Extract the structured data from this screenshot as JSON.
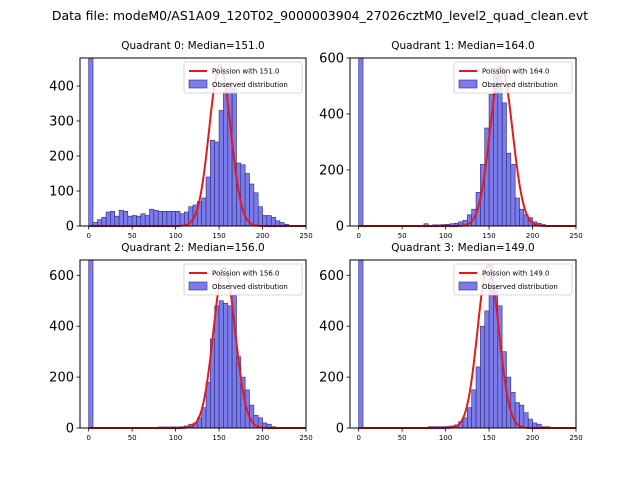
{
  "figure_title": "Data file: modeM0/AS1A09_120T02_9000003904_27026cztM0_level2_quad_clean.evt",
  "colors": {
    "bar_fill": "#7b7bea",
    "bar_edge": "#2b2b7a",
    "curve": "#e41a1c",
    "axis": "#000000"
  },
  "chart_data": [
    {
      "type": "bar",
      "title": "Quadrant 0: Median=151.0",
      "legend": [
        "Poission with 151.0",
        "Observed distribution"
      ],
      "legend_position": "top-right",
      "xlim": [
        -10,
        250
      ],
      "ylim": [
        0,
        480
      ],
      "xticks": [
        0,
        50,
        100,
        150,
        200,
        250
      ],
      "yticks": [
        0,
        100,
        200,
        300,
        400
      ],
      "bin_width": 5,
      "bins_start": [
        0,
        5,
        10,
        15,
        20,
        25,
        30,
        35,
        40,
        45,
        50,
        55,
        60,
        65,
        70,
        75,
        80,
        85,
        90,
        95,
        100,
        105,
        110,
        115,
        120,
        125,
        130,
        135,
        140,
        145,
        150,
        155,
        160,
        165,
        170,
        175,
        180,
        185,
        190,
        195,
        200,
        205,
        210,
        215,
        220,
        225,
        230,
        235,
        240
      ],
      "counts": [
        480,
        10,
        18,
        25,
        40,
        42,
        28,
        45,
        42,
        28,
        30,
        28,
        35,
        30,
        48,
        45,
        42,
        42,
        42,
        42,
        42,
        35,
        40,
        55,
        60,
        70,
        80,
        140,
        245,
        240,
        330,
        385,
        410,
        395,
        180,
        175,
        150,
        120,
        95,
        55,
        30,
        30,
        25,
        15,
        10,
        5,
        0,
        0,
        0
      ],
      "poisson_mean": 151.0,
      "poisson_peak": 460
    },
    {
      "type": "bar",
      "title": "Quadrant 1: Median=164.0",
      "legend": [
        "Poission with 164.0",
        "Observed distribution"
      ],
      "legend_position": "top-right",
      "xlim": [
        -10,
        250
      ],
      "ylim": [
        0,
        600
      ],
      "xticks": [
        0,
        50,
        100,
        150,
        200,
        250
      ],
      "yticks": [
        0,
        200,
        400,
        600
      ],
      "bin_width": 5,
      "bins_start": [
        0,
        5,
        10,
        15,
        20,
        25,
        30,
        35,
        40,
        45,
        50,
        55,
        60,
        65,
        70,
        75,
        80,
        85,
        90,
        95,
        100,
        105,
        110,
        115,
        120,
        125,
        130,
        135,
        140,
        145,
        150,
        155,
        160,
        165,
        170,
        175,
        180,
        185,
        190,
        195,
        200,
        205,
        210,
        215,
        220,
        225,
        230,
        235,
        240
      ],
      "counts": [
        600,
        2,
        2,
        2,
        2,
        2,
        2,
        2,
        2,
        2,
        2,
        2,
        2,
        2,
        2,
        8,
        2,
        4,
        4,
        5,
        6,
        8,
        10,
        15,
        20,
        40,
        60,
        120,
        220,
        350,
        470,
        540,
        570,
        440,
        260,
        220,
        100,
        60,
        40,
        30,
        15,
        10,
        5,
        2,
        0,
        0,
        0,
        0,
        0
      ],
      "poisson_mean": 164.0,
      "poisson_peak": 570
    },
    {
      "type": "bar",
      "title": "Quadrant 2: Median=156.0",
      "legend": [
        "Poission with 156.0",
        "Observed distribution"
      ],
      "legend_position": "top-right",
      "xlim": [
        -10,
        250
      ],
      "ylim": [
        0,
        660
      ],
      "xticks": [
        0,
        50,
        100,
        150,
        200,
        250
      ],
      "yticks": [
        0,
        200,
        400,
        600
      ],
      "bin_width": 5,
      "bins_start": [
        0,
        5,
        10,
        15,
        20,
        25,
        30,
        35,
        40,
        45,
        50,
        55,
        60,
        65,
        70,
        75,
        80,
        85,
        90,
        95,
        100,
        105,
        110,
        115,
        120,
        125,
        130,
        135,
        140,
        145,
        150,
        155,
        160,
        165,
        170,
        175,
        180,
        185,
        190,
        195,
        200,
        205,
        210,
        215,
        220,
        225,
        230,
        235,
        240
      ],
      "counts": [
        660,
        2,
        2,
        2,
        2,
        2,
        2,
        2,
        2,
        2,
        2,
        2,
        2,
        2,
        2,
        2,
        4,
        4,
        4,
        4,
        4,
        5,
        8,
        15,
        20,
        40,
        80,
        180,
        350,
        480,
        500,
        490,
        480,
        520,
        280,
        200,
        150,
        90,
        50,
        40,
        20,
        15,
        5,
        0,
        0,
        0,
        0,
        0,
        0
      ],
      "poisson_mean": 156.0,
      "poisson_peak": 630
    },
    {
      "type": "bar",
      "title": "Quadrant 3: Median=149.0",
      "legend": [
        "Poission with 149.0",
        "Observed distribution"
      ],
      "legend_position": "top-right",
      "xlim": [
        -10,
        250
      ],
      "ylim": [
        0,
        660
      ],
      "xticks": [
        0,
        50,
        100,
        150,
        200,
        250
      ],
      "yticks": [
        0,
        200,
        400,
        600
      ],
      "bin_width": 5,
      "bins_start": [
        0,
        5,
        10,
        15,
        20,
        25,
        30,
        35,
        40,
        45,
        50,
        55,
        60,
        65,
        70,
        75,
        80,
        85,
        90,
        95,
        100,
        105,
        110,
        115,
        120,
        125,
        130,
        135,
        140,
        145,
        150,
        155,
        160,
        165,
        170,
        175,
        180,
        185,
        190,
        195,
        200,
        205,
        210,
        215,
        220,
        225,
        230,
        235,
        240
      ],
      "counts": [
        660,
        2,
        2,
        2,
        2,
        2,
        2,
        2,
        2,
        2,
        2,
        2,
        2,
        2,
        2,
        2,
        5,
        5,
        5,
        5,
        6,
        8,
        12,
        25,
        40,
        80,
        150,
        240,
        400,
        460,
        640,
        560,
        480,
        300,
        200,
        140,
        100,
        90,
        60,
        35,
        20,
        15,
        5,
        5,
        0,
        0,
        0,
        0,
        0
      ],
      "poisson_mean": 149.0,
      "poisson_peak": 640
    }
  ]
}
